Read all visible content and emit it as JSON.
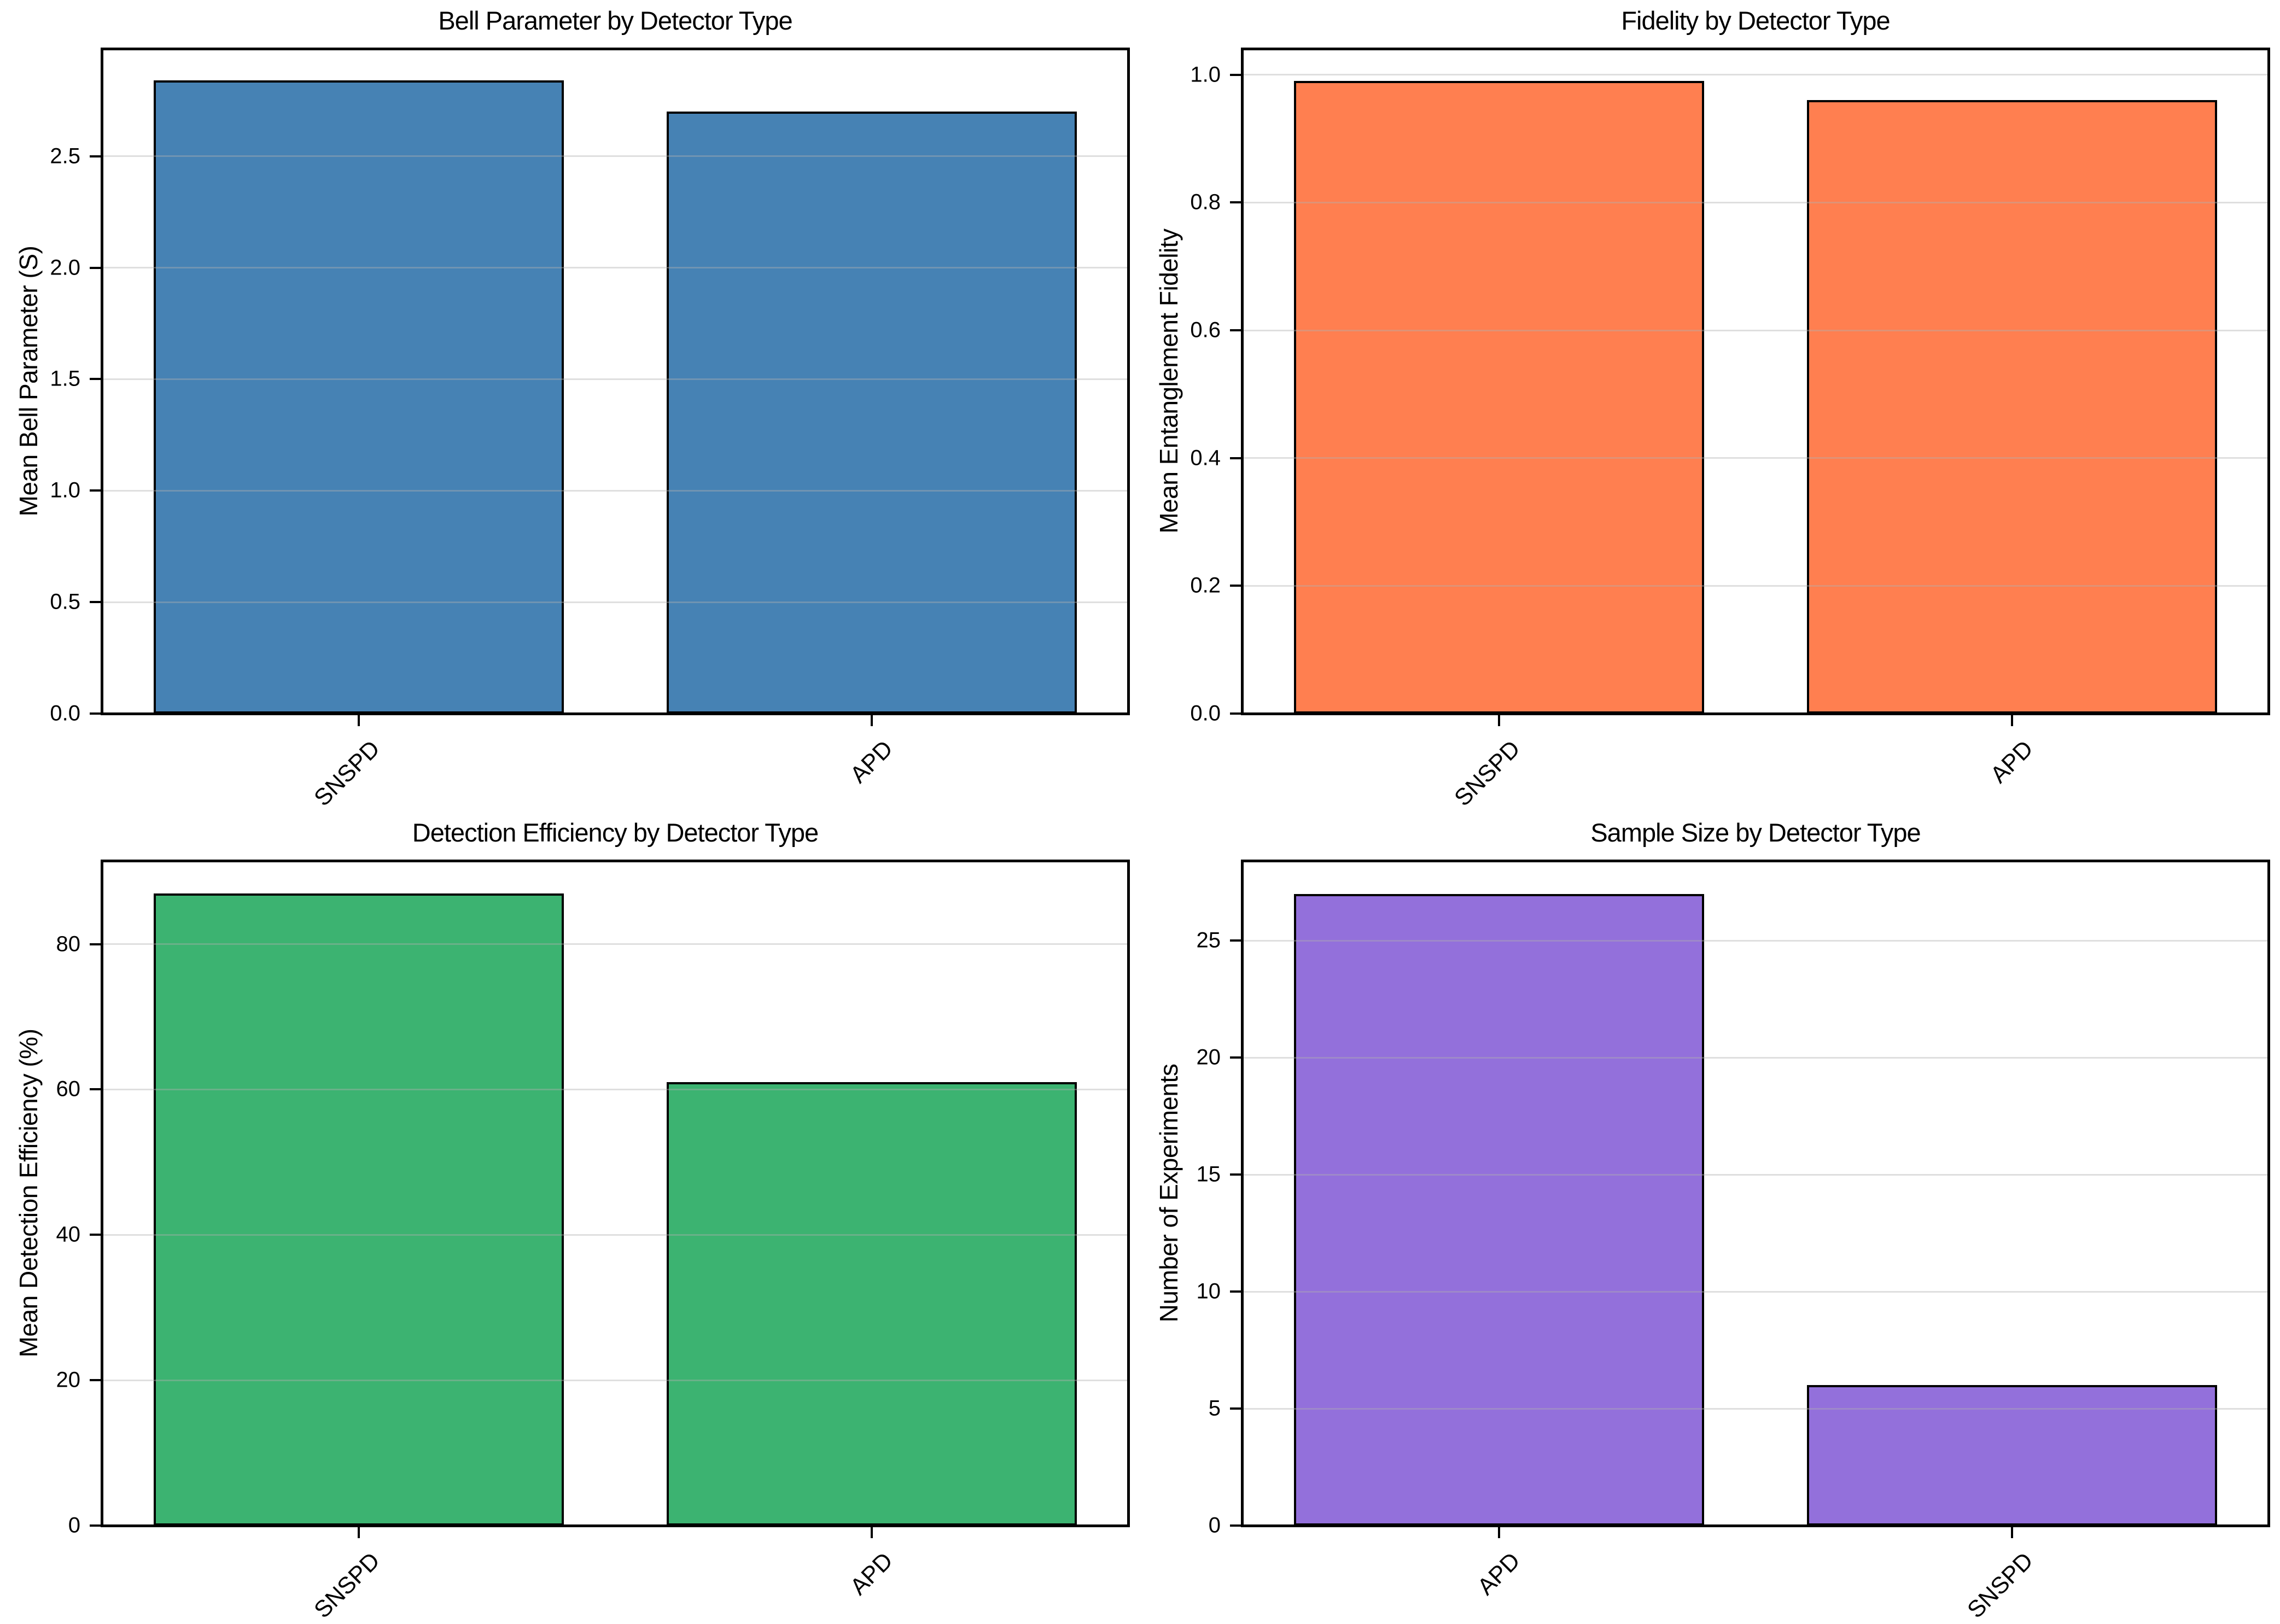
{
  "figure": {
    "background_color": "#ffffff",
    "grid_color": "#b0b0b0",
    "bar_edge_color": "#000000",
    "layout": "2x2 grid of bar charts",
    "xtick_rotation_deg": 45
  },
  "chart_data": [
    {
      "type": "bar",
      "title": "Bell Parameter by Detector Type",
      "ylabel": "Mean Bell Parameter (S)",
      "xlabel": "",
      "categories": [
        "SNSPD",
        "APD"
      ],
      "values": [
        2.84,
        2.7
      ],
      "bar_color": "#4682B4",
      "yticks": [
        0.0,
        0.5,
        1.0,
        1.5,
        2.0,
        2.5
      ],
      "ytick_labels": [
        "0.0",
        "0.5",
        "1.0",
        "1.5",
        "2.0",
        "2.5"
      ],
      "ylim": [
        0,
        2.98
      ],
      "grid": true,
      "legend": "none"
    },
    {
      "type": "bar",
      "title": "Fidelity by Detector Type",
      "ylabel": "Mean Entanglement Fidelity",
      "xlabel": "",
      "categories": [
        "SNSPD",
        "APD"
      ],
      "values": [
        0.99,
        0.96
      ],
      "bar_color": "#FF7F50",
      "yticks": [
        0.0,
        0.2,
        0.4,
        0.6,
        0.8,
        1.0
      ],
      "ytick_labels": [
        "0.0",
        "0.2",
        "0.4",
        "0.6",
        "0.8",
        "1.0"
      ],
      "ylim": [
        0,
        1.04
      ],
      "grid": true,
      "legend": "none"
    },
    {
      "type": "bar",
      "title": "Detection Efficiency by Detector Type",
      "ylabel": "Mean Detection Efficiency (%)",
      "xlabel": "",
      "categories": [
        "SNSPD",
        "APD"
      ],
      "values": [
        87,
        61
      ],
      "bar_color": "#3CB371",
      "yticks": [
        0,
        20,
        40,
        60,
        80
      ],
      "ytick_labels": [
        "0",
        "20",
        "40",
        "60",
        "80"
      ],
      "ylim": [
        0,
        91.4
      ],
      "grid": true,
      "legend": "none"
    },
    {
      "type": "bar",
      "title": "Sample Size by Detector Type",
      "ylabel": "Number of Experiments",
      "xlabel": "",
      "categories": [
        "APD",
        "SNSPD"
      ],
      "values": [
        27,
        6
      ],
      "bar_color": "#9370DB",
      "yticks": [
        0,
        5,
        10,
        15,
        20,
        25
      ],
      "ytick_labels": [
        "0",
        "5",
        "10",
        "15",
        "20",
        "25"
      ],
      "ylim": [
        0,
        28.4
      ],
      "grid": true,
      "legend": "none"
    }
  ]
}
